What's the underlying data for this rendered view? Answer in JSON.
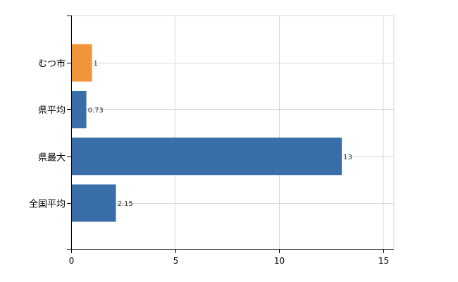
{
  "chart_data": {
    "type": "bar",
    "orientation": "horizontal",
    "categories": [
      "むつ市",
      "県平均",
      "県最大",
      "全国平均"
    ],
    "values": [
      1,
      0.73,
      13,
      2.15
    ],
    "value_labels": [
      "1",
      "0.73",
      "13",
      "2.15"
    ],
    "bar_colors": [
      "#f0953a",
      "#3a6ea9",
      "#3a6ea9",
      "#3a6ea9"
    ],
    "xlim": [
      0,
      15.5
    ],
    "x_ticks": [
      0,
      5,
      10,
      15
    ],
    "x_tick_labels": [
      "0",
      "5",
      "10",
      "15"
    ],
    "grid": true,
    "legend": false
  }
}
